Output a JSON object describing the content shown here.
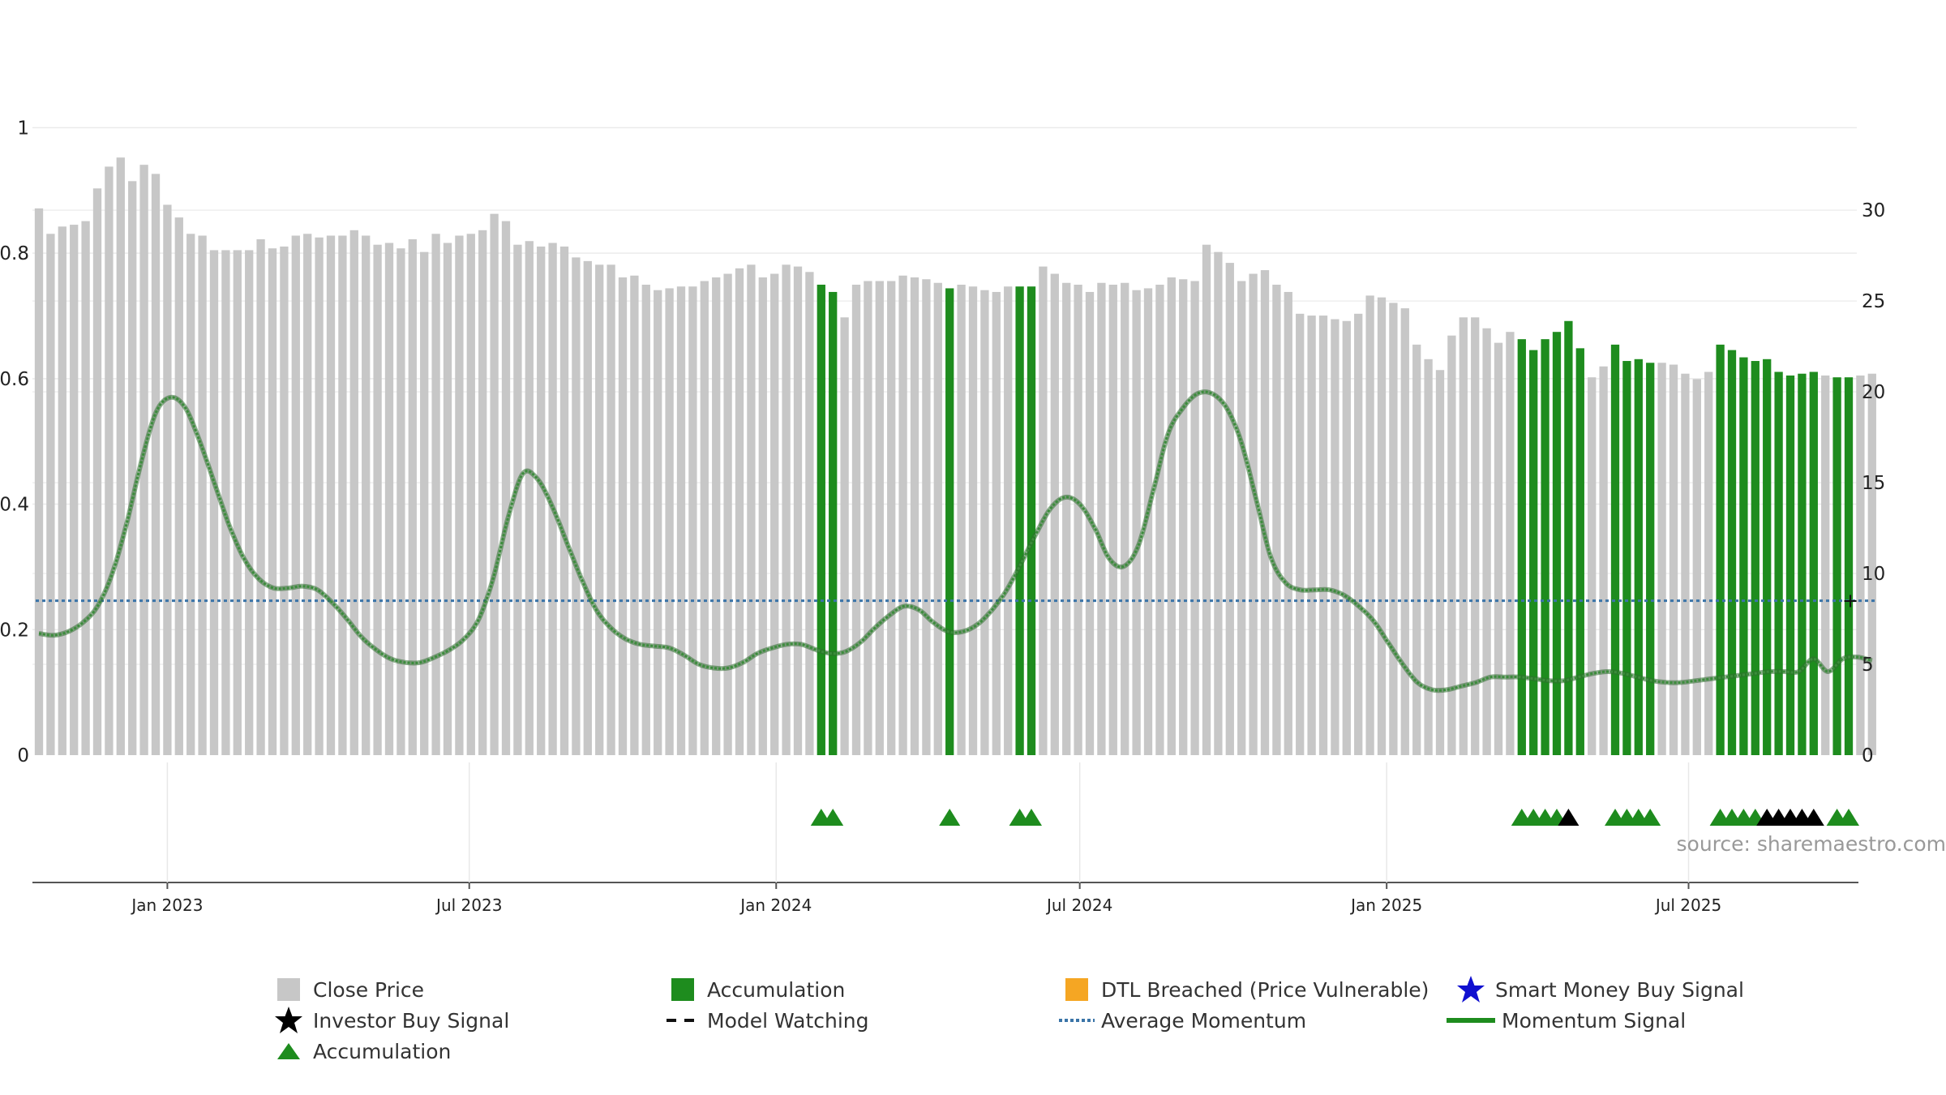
{
  "chart_data": {
    "type": "bar",
    "source": "source: sharemaestro.com",
    "left_axis": {
      "ticks": [
        "0",
        "0.2",
        "0.4",
        "0.6",
        "0.8",
        "1"
      ],
      "ylim": [
        0,
        1.1
      ]
    },
    "right_axis": {
      "ticks": [
        "0",
        "5",
        "10",
        "15",
        "20",
        "25",
        "30"
      ],
      "ylim": [
        0,
        38
      ]
    },
    "x_axis": {
      "ticks": [
        "Jan 2023",
        "Jul 2023",
        "Jan 2024",
        "Jul 2024",
        "Jan 2025",
        "Jul 2025"
      ],
      "start": "2022-10-16",
      "week_step": 1
    },
    "average_momentum": 8.5,
    "series": [
      {
        "name": "Close Price",
        "color": "#c7c7c7",
        "values": [
          30.1,
          28.7,
          29.1,
          29.2,
          29.4,
          31.2,
          32.4,
          32.9,
          31.6,
          32.5,
          32.0,
          30.3,
          29.6,
          28.7,
          28.6,
          27.8,
          27.8,
          27.8,
          27.8,
          28.4,
          27.9,
          28.0,
          28.6,
          28.7,
          28.5,
          28.6,
          28.6,
          28.9,
          28.6,
          28.1,
          28.2,
          27.9,
          28.4,
          27.7,
          28.7,
          28.2,
          28.6,
          28.7,
          28.9,
          29.8,
          29.4,
          28.1,
          28.3,
          28.0,
          28.2,
          28.0,
          27.4,
          27.2,
          27.0,
          27.0,
          26.3,
          26.4,
          25.9,
          25.6,
          25.7,
          25.8,
          25.8,
          26.1,
          26.3,
          26.5,
          26.8,
          27.0,
          26.3,
          26.5,
          27.0,
          26.9,
          26.6,
          25.9,
          25.5,
          24.1,
          25.9,
          26.1,
          26.1,
          26.1,
          26.4,
          26.3,
          26.2,
          26.0,
          25.7,
          25.9,
          25.8,
          25.6,
          25.5,
          25.8,
          25.8,
          25.8,
          26.9,
          26.5,
          26.0,
          25.9,
          25.5,
          26.0,
          25.9,
          26.0,
          25.6,
          25.7,
          25.9,
          26.3,
          26.2,
          26.1,
          28.1,
          27.7,
          27.1,
          26.1,
          26.5,
          26.7,
          25.9,
          25.5,
          24.3,
          24.2,
          24.2,
          24.0,
          23.9,
          24.3,
          25.3,
          25.2,
          24.9,
          24.6,
          22.6,
          21.8,
          21.2,
          23.1,
          24.1,
          24.1,
          23.5,
          22.7,
          23.3,
          22.9,
          22.3,
          22.9,
          23.3,
          23.9,
          22.4,
          20.8,
          21.4,
          22.6,
          21.7,
          21.8,
          21.6,
          21.6,
          21.5,
          21.0,
          20.7,
          21.1,
          22.6,
          22.3,
          21.9,
          21.7,
          21.8,
          21.1,
          20.9,
          21.0,
          21.1,
          20.9,
          20.8,
          20.8,
          20.9,
          21.0
        ]
      },
      {
        "name": "Accumulation",
        "color": "#1e8c1e",
        "bar_indices": [
          67,
          68,
          78,
          84,
          85,
          127,
          128,
          129,
          130,
          131,
          132,
          135,
          136,
          137,
          138,
          144,
          145,
          146,
          147,
          148,
          149,
          150,
          151,
          152,
          154,
          155
        ]
      },
      {
        "name": "Momentum Signal",
        "color": "#3c8c3c",
        "values": [
          6.7,
          6.6,
          6.8,
          7.3,
          8.2,
          10.0,
          12.8,
          16.2,
          18.9,
          19.7,
          19.1,
          17.2,
          14.9,
          12.6,
          10.8,
          9.7,
          9.2,
          9.2,
          9.3,
          9.1,
          8.4,
          7.5,
          6.5,
          5.8,
          5.3,
          5.1,
          5.1,
          5.4,
          5.8,
          6.4,
          7.5,
          9.8,
          13.1,
          15.5,
          15.2,
          13.7,
          11.7,
          9.7,
          8.0,
          7.0,
          6.4,
          6.1,
          6.0,
          5.9,
          5.5,
          5.0,
          4.8,
          4.8,
          5.1,
          5.6,
          5.9,
          6.1,
          6.1,
          5.8,
          5.6,
          5.7,
          6.2,
          7.0,
          7.7,
          8.2,
          8.0,
          7.3,
          6.8,
          6.8,
          7.2,
          8.0,
          9.1,
          10.6,
          12.2,
          13.6,
          14.2,
          13.8,
          12.5,
          10.8,
          10.4,
          11.6,
          14.6,
          17.7,
          19.1,
          19.9,
          19.9,
          19.1,
          17.2,
          14.1,
          10.9,
          9.5,
          9.1,
          9.1,
          9.1,
          8.8,
          8.2,
          7.4,
          6.2,
          5.0,
          4.0,
          3.6,
          3.6,
          3.8,
          4.0,
          4.3,
          4.3,
          4.3,
          4.2,
          4.1,
          4.1,
          4.3,
          4.5,
          4.6,
          4.5,
          4.3,
          4.1,
          4.0,
          4.0,
          4.1,
          4.2,
          4.3,
          4.4,
          4.5,
          4.6,
          4.6,
          4.6,
          5.3,
          4.6,
          5.3,
          5.4,
          5.2
        ]
      },
      {
        "name": "Average Momentum",
        "color": "#3a74a8"
      }
    ],
    "markers": {
      "accumulation_triangles": [
        67,
        68,
        78,
        84,
        85,
        127,
        128,
        129,
        130,
        135,
        136,
        137,
        138,
        144,
        145,
        146,
        147,
        154,
        155
      ],
      "investor_buy_signals": [
        131,
        148,
        149,
        150,
        151,
        152
      ]
    },
    "model_watching_marker": "+",
    "legend": [
      {
        "label": "Close Price",
        "symbol": "gray-square"
      },
      {
        "label": "Accumulation",
        "symbol": "green-square"
      },
      {
        "label": "DTL Breached (Price Vulnerable)",
        "symbol": "orange-square"
      },
      {
        "label": "Smart Money Buy Signal",
        "symbol": "blue-star"
      },
      {
        "label": "Investor Buy Signal",
        "symbol": "black-star"
      },
      {
        "label": "Model Watching",
        "symbol": "black-dash"
      },
      {
        "label": "Average Momentum",
        "symbol": "blue-dotted"
      },
      {
        "label": "Momentum Signal",
        "symbol": "green-line"
      },
      {
        "label": "Accumulation",
        "symbol": "green-triangle"
      }
    ],
    "colors": {
      "close": "#c7c7c7",
      "accum": "#1e8c1e",
      "momentum": "#3c8c3c",
      "avg": "#3a74a8",
      "dtl": "#f5a623",
      "smart": "#1010d0",
      "investor": "#000000"
    }
  }
}
